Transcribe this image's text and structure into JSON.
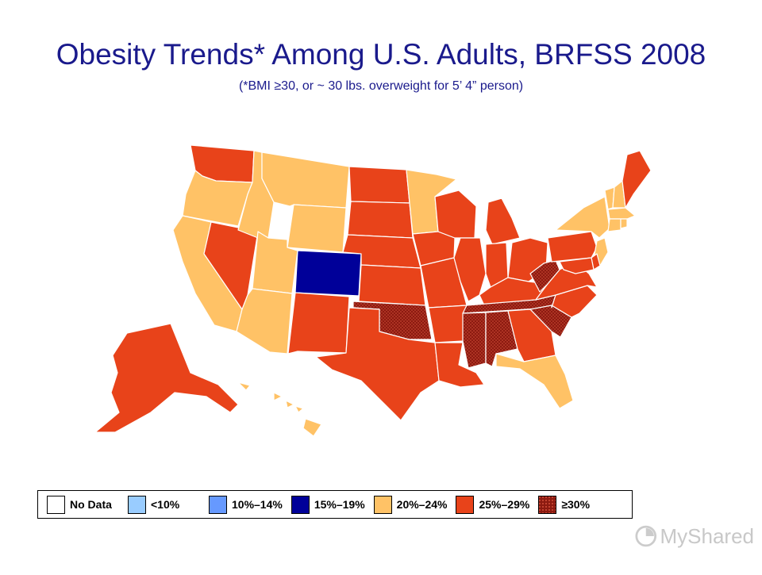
{
  "title": "Obesity Trends* Among U.S. Adults, BRFSS 2008",
  "subtitle": "(*BMI ≥30, or ~ 30 lbs. overweight for 5’ 4” person)",
  "colors": {
    "no_data": "#ffffff",
    "lt10": "#99ccff",
    "c10_14": "#6699ff",
    "c15_19": "#000099",
    "c20_24": "#ffc266",
    "c25_29": "#e8431a",
    "ge30": "#8c1a10",
    "title": "#1a1a8c"
  },
  "legend": [
    {
      "label": "No Data",
      "color_key": "no_data"
    },
    {
      "label": "<10%",
      "color_key": "lt10"
    },
    {
      "label": "10%–14%",
      "color_key": "c10_14"
    },
    {
      "label": "15%–19%",
      "color_key": "c15_19"
    },
    {
      "label": "20%–24%",
      "color_key": "c20_24"
    },
    {
      "label": "25%–29%",
      "color_key": "c25_29"
    },
    {
      "label": "≥30%",
      "color_key": "ge30"
    }
  ],
  "watermark": {
    "text": "MyShared"
  },
  "states": {
    "WA": "25–29",
    "OR": "20–24",
    "CA": "20–24",
    "NV": "25–29",
    "ID": "20–24",
    "MT": "20–24",
    "WY": "20–24",
    "UT": "20–24",
    "AZ": "20–24",
    "CO": "15–19",
    "NM": "25–29",
    "ND": "25–29",
    "SD": "25–29",
    "NE": "25–29",
    "KS": "25–29",
    "OK": "≥30",
    "TX": "25–29",
    "MN": "20–24",
    "IA": "25–29",
    "MO": "25–29",
    "AR": "25–29",
    "LA": "25–29",
    "WI": "25–29",
    "IL": "25–29",
    "MI": "25–29",
    "IN": "25–29",
    "OH": "25–29",
    "KY": "25–29",
    "TN": "≥30",
    "MS": "≥30",
    "AL": "≥30",
    "GA": "25–29",
    "FL": "20–24",
    "SC": "≥30",
    "NC": "25–29",
    "VA": "25–29",
    "WV": "≥30",
    "PA": "25–29",
    "NY": "20–24",
    "VT": "20–24",
    "NH": "20–24",
    "ME": "25–29",
    "MA": "20–24",
    "CT": "20–24",
    "RI": "20–24",
    "NJ": "20–24",
    "DE": "25–29",
    "MD": "25–29",
    "AK": "25–29",
    "HI": "20–24"
  }
}
